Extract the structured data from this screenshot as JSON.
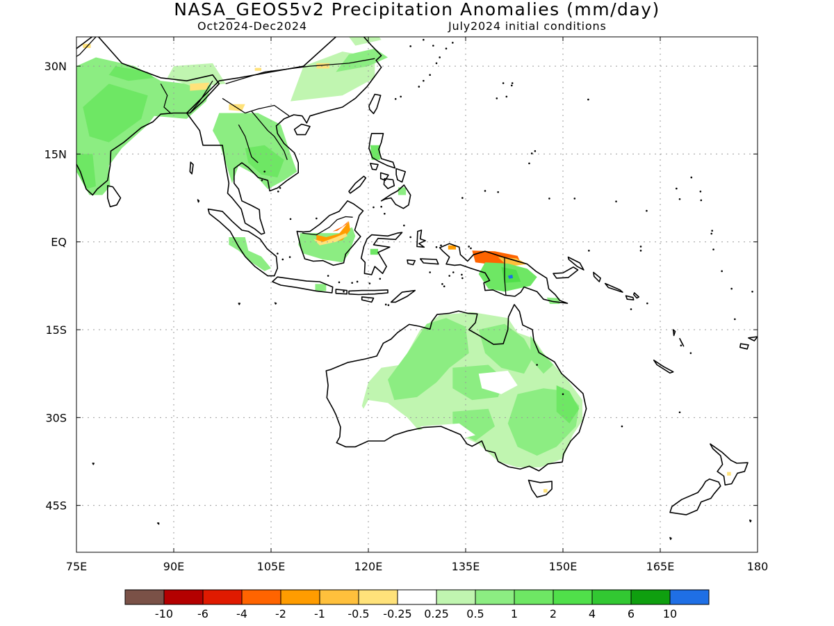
{
  "title": "NASA_GEOS5v2 Precipitation Anomalies (mm/day)",
  "season": "Oct2024-Dec2024",
  "init_conditions": "July2024 initial conditions",
  "map": {
    "lon_range": [
      75,
      180
    ],
    "lat_range": [
      -53,
      35
    ],
    "lat_ticks": [
      {
        "value": 30,
        "label": "30N"
      },
      {
        "value": 15,
        "label": "15N"
      },
      {
        "value": 0,
        "label": "EQ"
      },
      {
        "value": -15,
        "label": "15S"
      },
      {
        "value": -30,
        "label": "30S"
      },
      {
        "value": -45,
        "label": "45S"
      }
    ],
    "lon_ticks": [
      {
        "value": 75,
        "label": "75E"
      },
      {
        "value": 90,
        "label": "90E"
      },
      {
        "value": 105,
        "label": "105E"
      },
      {
        "value": 120,
        "label": "120E"
      },
      {
        "value": 135,
        "label": "135E"
      },
      {
        "value": 150,
        "label": "150E"
      },
      {
        "value": 165,
        "label": "165E"
      },
      {
        "value": 180,
        "label": "180"
      }
    ],
    "grid": true,
    "colors": {
      "coast": "#000000",
      "pale_green": "#c0f5b0",
      "light_green": "#8ced82",
      "mid_green": "#6ee764",
      "green": "#50e04a",
      "dark_green": "#32c832",
      "blue": "#1f6fe5",
      "pale_yellow": "#ffe27a",
      "yellow": "#ffc03c",
      "orange": "#ff9c00",
      "dark_orange": "#ff6400",
      "red": "#e01a00"
    }
  },
  "colorbar": {
    "colors": [
      "#7a5147",
      "#b40000",
      "#e01a00",
      "#ff6400",
      "#ff9c00",
      "#ffc03c",
      "#ffe27a",
      "#ffffff",
      "#c0f5b0",
      "#8ced82",
      "#6ee764",
      "#50e04a",
      "#32c832",
      "#0f9f0f",
      "#1f6fe5"
    ],
    "labels": [
      "-10",
      "-6",
      "-4",
      "-2",
      "-1",
      "-0.5",
      "-0.25",
      "0.25",
      "0.5",
      "1",
      "2",
      "4",
      "6",
      "10"
    ]
  }
}
